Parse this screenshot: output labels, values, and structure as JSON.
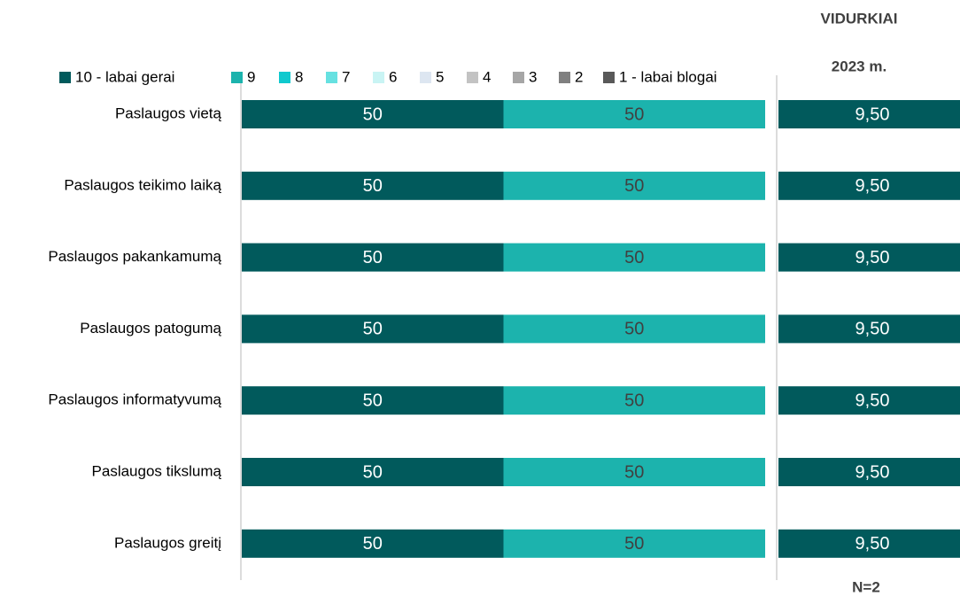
{
  "chart_data": {
    "type": "bar",
    "orientation": "horizontal",
    "stacked": true,
    "categories": [
      "Paslaugos vietą",
      "Paslaugos teikimo laiką",
      "Paslaugos pakankamumą",
      "Paslaugos patogumą",
      "Paslaugos informatyvumą",
      "Paslaugos tikslumą",
      "Paslaugos greitį"
    ],
    "xlim": [
      0,
      100
    ],
    "series": [
      {
        "name": "10 - labai gerai",
        "color": "#015a5c",
        "values": [
          50,
          50,
          50,
          50,
          50,
          50,
          50
        ]
      },
      {
        "name": "9",
        "color": "#1cb3ad",
        "values": [
          50,
          50,
          50,
          50,
          50,
          50,
          50
        ]
      },
      {
        "name": "8",
        "color": "#10c9ce",
        "values": [
          0,
          0,
          0,
          0,
          0,
          0,
          0
        ]
      },
      {
        "name": "7",
        "color": "#66e1e1",
        "values": [
          0,
          0,
          0,
          0,
          0,
          0,
          0
        ]
      },
      {
        "name": "6",
        "color": "#c9f4f4",
        "values": [
          0,
          0,
          0,
          0,
          0,
          0,
          0
        ]
      },
      {
        "name": "5",
        "color": "#dde6f1",
        "values": [
          0,
          0,
          0,
          0,
          0,
          0,
          0
        ]
      },
      {
        "name": "4",
        "color": "#c3c3c3",
        "values": [
          0,
          0,
          0,
          0,
          0,
          0,
          0
        ]
      },
      {
        "name": "3",
        "color": "#a6a6a6",
        "values": [
          0,
          0,
          0,
          0,
          0,
          0,
          0
        ]
      },
      {
        "name": "2",
        "color": "#808080",
        "values": [
          0,
          0,
          0,
          0,
          0,
          0,
          0
        ]
      },
      {
        "name": "1 - labai blogai",
        "color": "#595959",
        "values": [
          0,
          0,
          0,
          0,
          0,
          0,
          0
        ]
      }
    ],
    "averages": {
      "title": "VIDURKIAI",
      "subtitle": "2023 m.",
      "color": "#015a5c",
      "values": [
        9.5,
        9.5,
        9.5,
        9.5,
        9.5,
        9.5,
        9.5
      ],
      "value_labels": [
        "9,50",
        "9,50",
        "9,50",
        "9,50",
        "9,50",
        "9,50",
        "9,50"
      ]
    },
    "note": "N=2"
  }
}
